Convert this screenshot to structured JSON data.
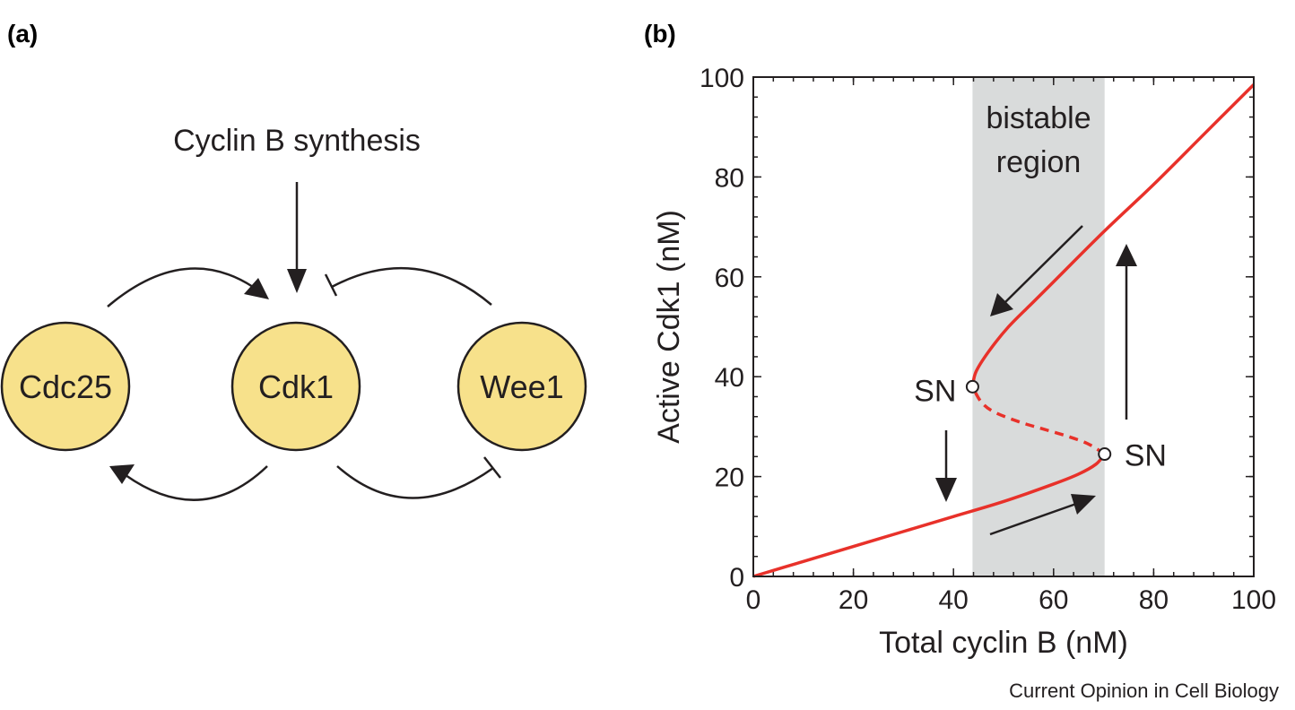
{
  "panels": {
    "a_label": "(a)",
    "b_label": "(b)"
  },
  "network": {
    "synthesis_label": "Cyclin B synthesis",
    "nodes": {
      "cdc25": "Cdc25",
      "cdk1": "Cdk1",
      "wee1": "Wee1"
    },
    "node_color": "#f7e18b"
  },
  "credit": "Current Opinion in Cell Biology",
  "chart_data": {
    "type": "line",
    "xlabel": "Total cyclin B (nM)",
    "ylabel": "Active Cdk1 (nM)",
    "xlim": [
      0,
      100
    ],
    "ylim": [
      0,
      100
    ],
    "x_ticks": [
      "0",
      "20",
      "40",
      "60",
      "80",
      "100"
    ],
    "y_ticks": [
      "0",
      "20",
      "40",
      "60",
      "80",
      "100"
    ],
    "shaded_region": {
      "x_range": [
        43.8,
        70.2
      ],
      "label_line1": "bistable",
      "label_line2": "region",
      "color": "#d9dbdb"
    },
    "line_color": "#e8312a",
    "series": [
      {
        "style": "solid",
        "x": [
          0,
          10,
          20,
          30,
          40,
          50,
          60,
          65,
          68.5,
          70.2
        ],
        "y": [
          0,
          3,
          6,
          9,
          12,
          15,
          18.5,
          20.5,
          22.5,
          24.5
        ]
      },
      {
        "style": "dashed",
        "x": [
          70.2,
          67,
          63,
          58,
          53,
          48,
          45.5,
          43.8
        ],
        "y": [
          24.5,
          26.5,
          28,
          29.5,
          31,
          33,
          35,
          38
        ]
      },
      {
        "style": "solid",
        "x": [
          43.8,
          44.5,
          47,
          51,
          56,
          60,
          70,
          80,
          90,
          100
        ],
        "y": [
          38,
          41,
          45,
          50,
          55,
          59,
          69,
          78.5,
          88.5,
          98.5
        ]
      }
    ],
    "saddle_nodes": [
      {
        "x": 43.8,
        "y": 38,
        "label": "SN"
      },
      {
        "x": 70.2,
        "y": 24.5,
        "label": "SN"
      }
    ]
  }
}
